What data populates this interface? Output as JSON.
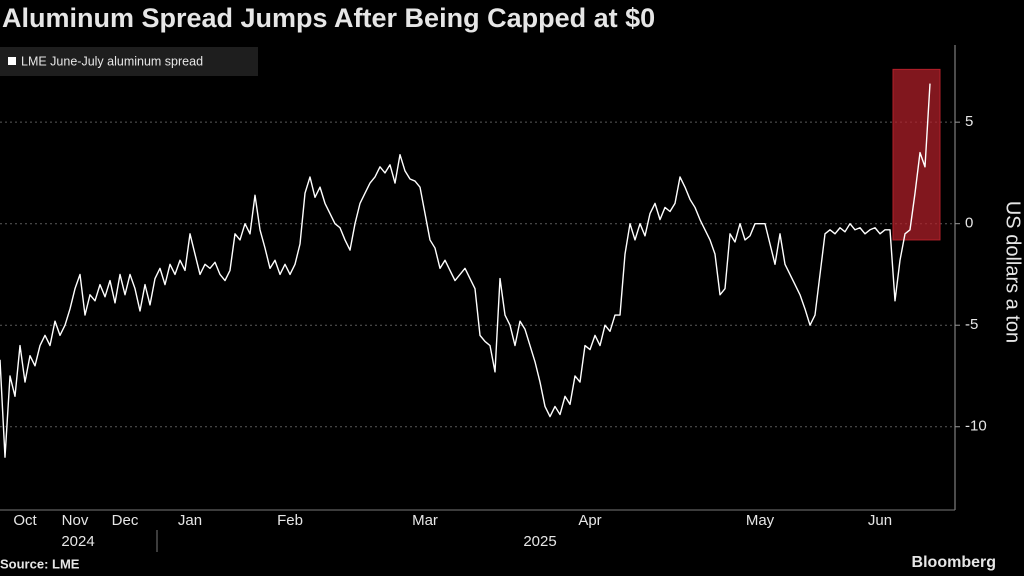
{
  "chart_data": {
    "type": "line",
    "title": "Aluminum Spread Jumps After Being Capped at $0",
    "y_label": "US dollars a ton",
    "source": "Source: LME",
    "brand": "Bloomberg",
    "year_labels": [
      "2024",
      "2025"
    ],
    "categories": [
      null,
      null,
      null,
      null,
      null,
      "Oct",
      null,
      null,
      null,
      null,
      null,
      null,
      null,
      null,
      null,
      "Nov",
      null,
      null,
      null,
      null,
      null,
      null,
      null,
      null,
      null,
      "Dec",
      null,
      null,
      null,
      null,
      null,
      null,
      null,
      null,
      null,
      null,
      null,
      null,
      "Jan",
      null,
      null,
      null,
      null,
      null,
      null,
      null,
      null,
      null,
      null,
      null,
      null,
      null,
      null,
      null,
      null,
      null,
      null,
      null,
      "Feb",
      null,
      null,
      null,
      null,
      null,
      null,
      null,
      null,
      null,
      null,
      null,
      null,
      null,
      null,
      null,
      null,
      null,
      null,
      null,
      null,
      null,
      null,
      null,
      null,
      null,
      null,
      "Mar",
      null,
      null,
      null,
      null,
      null,
      null,
      null,
      null,
      null,
      null,
      null,
      null,
      null,
      null,
      null,
      null,
      null,
      null,
      null,
      null,
      null,
      null,
      null,
      null,
      null,
      null,
      null,
      null,
      null,
      null,
      null,
      null,
      "Apr",
      null,
      null,
      null,
      null,
      null,
      null,
      null,
      null,
      null,
      null,
      null,
      null,
      null,
      null,
      null,
      null,
      null,
      null,
      null,
      null,
      null,
      null,
      null,
      null,
      null,
      null,
      null,
      null,
      null,
      null,
      null,
      null,
      null,
      "May",
      null,
      null,
      null,
      null,
      null,
      null,
      null,
      null,
      null,
      null,
      null,
      null,
      null,
      null,
      null,
      null,
      null,
      null,
      null,
      null,
      null,
      null,
      null,
      "Jun",
      null,
      null,
      null,
      null,
      null,
      null,
      null,
      null,
      null,
      null
    ],
    "series": [
      {
        "name": "LME June-July aluminum spread",
        "color": "#ffffff",
        "values": [
          -6.7,
          -11.5,
          -7.5,
          -8.5,
          -6,
          -7.8,
          -6.5,
          -7,
          -6,
          -5.5,
          -6,
          -4.8,
          -5.5,
          -5,
          -4.2,
          -3.2,
          -2.5,
          -4.5,
          -3.5,
          -3.8,
          -3,
          -3.6,
          -2.8,
          -3.9,
          -2.5,
          -3.5,
          -2.5,
          -3.2,
          -4.3,
          -3,
          -4,
          -2.7,
          -2.2,
          -3,
          -2,
          -2.5,
          -1.8,
          -2.3,
          -0.5,
          -1.5,
          -2.5,
          -2,
          -2.2,
          -1.9,
          -2.5,
          -2.8,
          -2.3,
          -0.5,
          -0.8,
          0,
          -0.5,
          1.4,
          -0.3,
          -1.2,
          -2.2,
          -1.8,
          -2.5,
          -2,
          -2.5,
          -2,
          -1,
          1.5,
          2.3,
          1.3,
          1.8,
          1,
          0.5,
          0,
          -0.2,
          -0.8,
          -1.3,
          0,
          1,
          1.5,
          2,
          2.3,
          2.8,
          2.5,
          2.9,
          2,
          3.4,
          2.6,
          2.2,
          2.1,
          1.8,
          0.5,
          -0.8,
          -1.2,
          -2.2,
          -1.8,
          -2.3,
          -2.8,
          -2.5,
          -2.2,
          -2.7,
          -3.2,
          -5.5,
          -5.8,
          -6,
          -7.3,
          -2.7,
          -4.5,
          -5,
          -6,
          -4.8,
          -5.2,
          -6,
          -6.8,
          -7.8,
          -9,
          -9.5,
          -9,
          -9.4,
          -8.5,
          -8.9,
          -7.5,
          -7.8,
          -6,
          -6.2,
          -5.5,
          -6,
          -5,
          -5.3,
          -4.5,
          -4.5,
          -1.5,
          0,
          -0.8,
          0,
          -0.6,
          0.5,
          1,
          0.2,
          0.8,
          0.6,
          1,
          2.3,
          1.8,
          1.2,
          0.8,
          0.2,
          -0.3,
          -0.8,
          -1.5,
          -3.5,
          -3.2,
          -0.5,
          -0.9,
          0,
          -0.8,
          -0.6,
          0,
          0,
          0,
          -1,
          -2,
          -0.5,
          -2,
          -2.5,
          -3,
          -3.5,
          -4.2,
          -5,
          -4.5,
          -2.5,
          -0.5,
          -0.3,
          -0.5,
          -0.2,
          -0.4,
          0,
          -0.3,
          -0.2,
          -0.5,
          -0.3,
          -0.2,
          -0.5,
          -0.3,
          -0.3,
          -3.8,
          -1.8,
          -0.5,
          -0.3,
          1.5,
          3.5,
          2.8,
          6.9
        ]
      }
    ],
    "ylim": [
      -14.1,
      8.8
    ],
    "yticks": [
      5,
      0,
      -5,
      -10
    ],
    "grid": true,
    "highlight": {
      "ylim": [
        -0.8,
        7.6
      ],
      "color": "#b3202a"
    }
  }
}
